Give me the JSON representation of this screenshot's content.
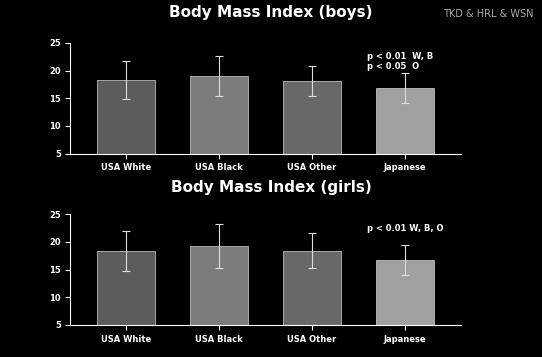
{
  "chart_data": [
    {
      "type": "bar",
      "title": "Body Mass Index (boys)",
      "credit": "TKD & HRL & WSN",
      "categories": [
        "USA White",
        "USA Black",
        "USA Other",
        "Japanese"
      ],
      "values": [
        18.3,
        19.0,
        18.1,
        16.9
      ],
      "errors": [
        3.5,
        3.6,
        2.7,
        2.7
      ],
      "colors": [
        "#5c5c5c",
        "#7c7c7c",
        "#686868",
        "#a0a0a0"
      ],
      "annotations": [
        "p < 0.01  W, B",
        "p < 0.05  O"
      ],
      "ylim": [
        5,
        25
      ],
      "yticks": [
        5,
        10,
        15,
        20,
        25
      ],
      "grid": false
    },
    {
      "type": "bar",
      "title": "Body Mass Index (girls)",
      "categories": [
        "USA White",
        "USA Black",
        "USA Other",
        "Japanese"
      ],
      "values": [
        18.4,
        19.2,
        18.4,
        16.8
      ],
      "errors": [
        3.6,
        4.0,
        3.2,
        2.7
      ],
      "colors": [
        "#5c5c5c",
        "#7c7c7c",
        "#686868",
        "#a0a0a0"
      ],
      "annotations": [
        "p < 0.01 W, B, O"
      ],
      "ylim": [
        5,
        25
      ],
      "yticks": [
        5,
        10,
        15,
        20,
        25
      ],
      "grid": false
    }
  ]
}
